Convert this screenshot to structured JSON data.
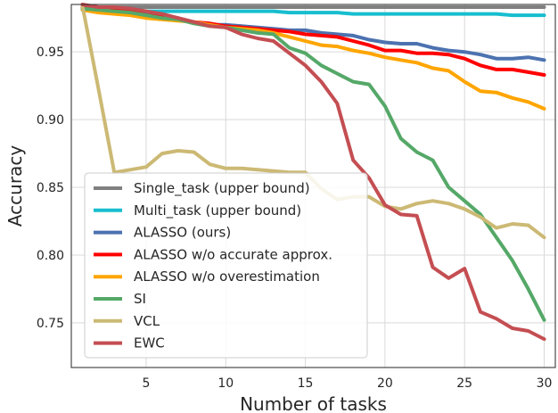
{
  "chart_data": {
    "type": "line",
    "title": "",
    "xlabel": "Number of tasks",
    "ylabel": "Accuracy",
    "xlim": [
      0.3,
      30.7
    ],
    "ylim": [
      0.717,
      0.985
    ],
    "xticks": [
      5,
      10,
      15,
      20,
      25,
      30
    ],
    "yticks": [
      0.75,
      0.8,
      0.85,
      0.9,
      0.95
    ],
    "ytick_labels": [
      "0.75",
      "0.80",
      "0.85",
      "0.90",
      "0.95"
    ],
    "grid": true,
    "legend_position": "lower-left",
    "x": [
      1,
      2,
      3,
      4,
      5,
      6,
      7,
      8,
      9,
      10,
      11,
      12,
      13,
      14,
      15,
      16,
      17,
      18,
      19,
      20,
      21,
      22,
      23,
      24,
      25,
      26,
      27,
      28,
      29,
      30
    ],
    "series": [
      {
        "name": "Single_task (upper bound)",
        "color": "#808080",
        "values": [
          0.983,
          0.983,
          0.983,
          0.983,
          0.983,
          0.983,
          0.983,
          0.983,
          0.983,
          0.983,
          0.983,
          0.983,
          0.983,
          0.983,
          0.983,
          0.983,
          0.983,
          0.983,
          0.983,
          0.983,
          0.983,
          0.983,
          0.983,
          0.983,
          0.983,
          0.983,
          0.983,
          0.983,
          0.983,
          0.983
        ]
      },
      {
        "name": "Multi_task (upper bound)",
        "color": "#17BECF",
        "values": [
          0.981,
          0.98,
          0.98,
          0.98,
          0.98,
          0.98,
          0.98,
          0.98,
          0.98,
          0.98,
          0.98,
          0.98,
          0.98,
          0.979,
          0.979,
          0.979,
          0.979,
          0.978,
          0.978,
          0.978,
          0.978,
          0.978,
          0.978,
          0.978,
          0.978,
          0.978,
          0.978,
          0.977,
          0.977,
          0.977
        ]
      },
      {
        "name": "ALASSO (ours)",
        "color": "#4C72B0",
        "values": [
          0.983,
          0.982,
          0.982,
          0.982,
          0.979,
          0.977,
          0.975,
          0.972,
          0.97,
          0.97,
          0.969,
          0.968,
          0.967,
          0.966,
          0.966,
          0.964,
          0.963,
          0.962,
          0.959,
          0.957,
          0.956,
          0.956,
          0.953,
          0.951,
          0.95,
          0.948,
          0.945,
          0.945,
          0.946,
          0.944
        ]
      },
      {
        "name": "ALASSO w/o accurate approx.",
        "color": "#FF0000",
        "values": [
          0.983,
          0.982,
          0.981,
          0.98,
          0.977,
          0.976,
          0.974,
          0.972,
          0.971,
          0.969,
          0.968,
          0.967,
          0.966,
          0.965,
          0.963,
          0.962,
          0.961,
          0.958,
          0.955,
          0.951,
          0.951,
          0.949,
          0.949,
          0.948,
          0.945,
          0.94,
          0.937,
          0.937,
          0.935,
          0.933
        ]
      },
      {
        "name": "ALASSO w/o overestimation",
        "color": "#FFA500",
        "values": [
          0.981,
          0.979,
          0.978,
          0.977,
          0.975,
          0.974,
          0.973,
          0.972,
          0.97,
          0.968,
          0.967,
          0.966,
          0.964,
          0.961,
          0.958,
          0.955,
          0.954,
          0.951,
          0.949,
          0.946,
          0.944,
          0.942,
          0.938,
          0.936,
          0.928,
          0.921,
          0.92,
          0.916,
          0.913,
          0.908
        ]
      },
      {
        "name": "SI",
        "color": "#55A868",
        "values": [
          0.982,
          0.981,
          0.98,
          0.979,
          0.977,
          0.975,
          0.974,
          0.971,
          0.969,
          0.968,
          0.966,
          0.964,
          0.963,
          0.953,
          0.949,
          0.94,
          0.934,
          0.928,
          0.926,
          0.91,
          0.886,
          0.876,
          0.87,
          0.85,
          0.84,
          0.83,
          0.813,
          0.796,
          0.775,
          0.752
        ]
      },
      {
        "name": "VCL",
        "color": "#CCB974",
        "values": [
          0.984,
          0.923,
          0.861,
          0.863,
          0.865,
          0.875,
          0.877,
          0.876,
          0.867,
          0.864,
          0.864,
          0.863,
          0.862,
          0.861,
          0.861,
          0.849,
          0.841,
          0.843,
          0.843,
          0.836,
          0.834,
          0.838,
          0.84,
          0.838,
          0.834,
          0.828,
          0.82,
          0.823,
          0.822,
          0.813
        ]
      },
      {
        "name": "EWC",
        "color": "#C44E52",
        "values": [
          0.985,
          0.983,
          0.983,
          0.982,
          0.98,
          0.978,
          0.975,
          0.972,
          0.969,
          0.968,
          0.963,
          0.96,
          0.958,
          0.949,
          0.94,
          0.928,
          0.912,
          0.87,
          0.857,
          0.837,
          0.83,
          0.829,
          0.791,
          0.783,
          0.79,
          0.758,
          0.753,
          0.746,
          0.744,
          0.738
        ]
      }
    ]
  }
}
